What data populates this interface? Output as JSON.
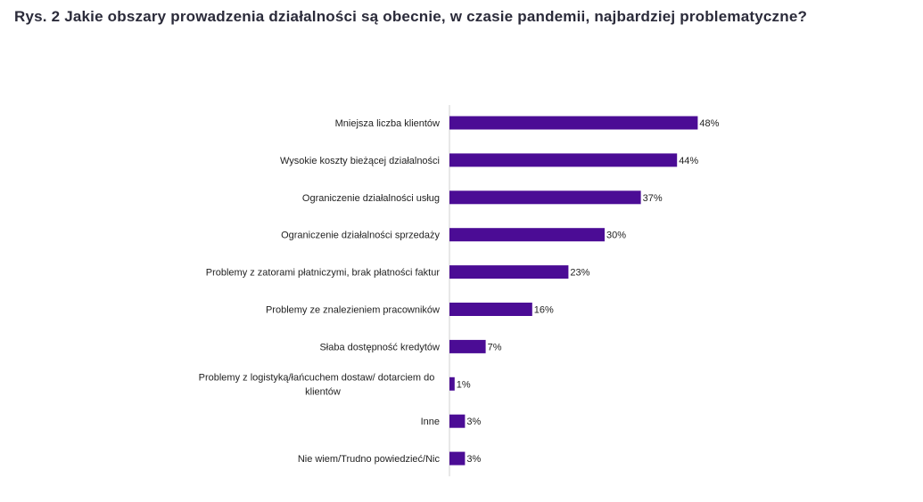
{
  "title": "Rys. 2 Jakie obszary prowadzenia działalności są obecnie, w czasie pandemii, najbardziej problematyczne?",
  "colors": {
    "bar": "#4b0c95",
    "axis": "#d0d0d0",
    "text": "#222222"
  },
  "chart_data": {
    "type": "bar",
    "orientation": "horizontal",
    "categories": [
      [
        "Mniejsza liczba klientów"
      ],
      [
        "Wysokie koszty bieżącej działalności"
      ],
      [
        "Ograniczenie działalności usług"
      ],
      [
        "Ograniczenie działalności sprzedaży"
      ],
      [
        "Problemy z zatorami płatniczymi, brak płatności faktur"
      ],
      [
        "Problemy ze znalezieniem pracowników"
      ],
      [
        "Słaba dostępność kredytów"
      ],
      [
        "Problemy z logistyką/łańcuchem dostaw/ dotarciem do",
        "klientów"
      ],
      [
        "Inne"
      ],
      [
        "Nie wiem/Trudno powiedzieć/Nic"
      ]
    ],
    "values": [
      48,
      44,
      37,
      30,
      23,
      16,
      7,
      1,
      3,
      3
    ],
    "value_labels": [
      "48%",
      "44%",
      "37%",
      "30%",
      "23%",
      "16%",
      "7%",
      "1%",
      "3%",
      "3%"
    ],
    "unit": "%",
    "xlim": [
      0,
      100
    ],
    "grid": false,
    "legend": "none"
  }
}
